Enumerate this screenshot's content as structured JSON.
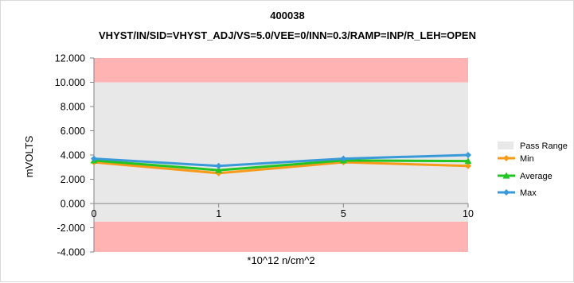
{
  "chart_data": {
    "type": "line",
    "title": "400038",
    "subtitle": "VHYST/IN/SID=VHYST_ADJ/VS=5.0/VEE=0/INN=0.3/RAMP=INP/R_LEH=OPEN",
    "xlabel": "*10^12 n/cm^2",
    "ylabel": "mVOLTS",
    "categories": [
      "0",
      "1",
      "5",
      "10"
    ],
    "ylim": [
      -4,
      12
    ],
    "yticks": [
      -4,
      -2,
      0,
      2,
      4,
      6,
      8,
      10,
      12
    ],
    "ytick_labels": [
      "-4.000",
      "-2.000",
      "0.000",
      "2.000",
      "4.000",
      "6.000",
      "8.000",
      "10.000",
      "12.000"
    ],
    "pass_range": {
      "name": "Pass Range",
      "low": -1.5,
      "high": 10,
      "color": "#e8e8e8",
      "fail_color": "#ffb3b3"
    },
    "series": [
      {
        "name": "Min",
        "color": "#f79a1a",
        "marker": "diamond",
        "values": [
          3.4,
          2.5,
          3.4,
          3.1
        ]
      },
      {
        "name": "Average",
        "color": "#22c522",
        "marker": "triangle",
        "values": [
          3.55,
          2.75,
          3.55,
          3.5
        ]
      },
      {
        "name": "Max",
        "color": "#3a9ad9",
        "marker": "diamond",
        "values": [
          3.7,
          3.1,
          3.7,
          4.0
        ]
      }
    ],
    "grid": false,
    "legend_position": "right"
  }
}
